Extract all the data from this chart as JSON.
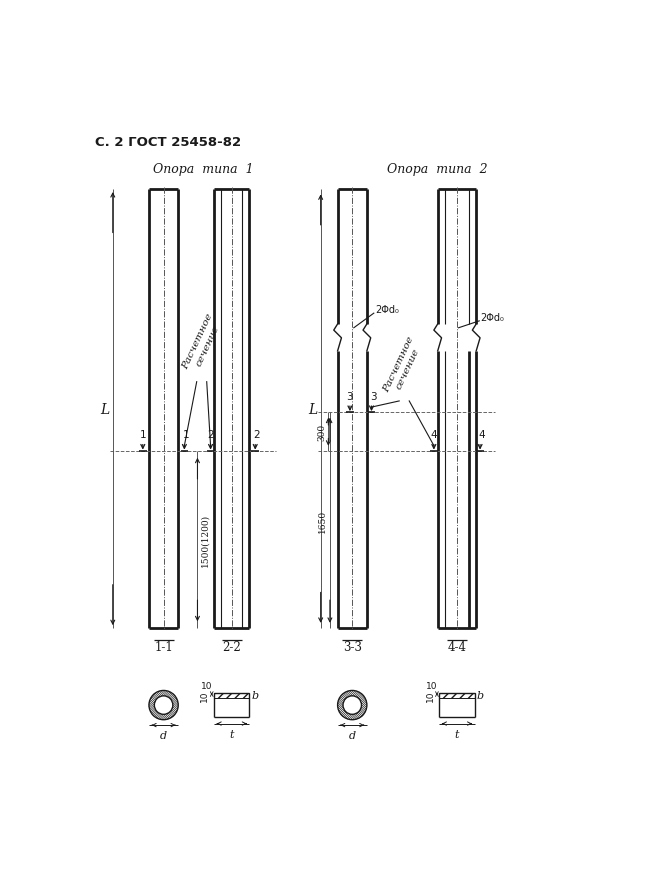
{
  "title_page": "С. 2 ГОСТ 25458-82",
  "title1": "Опора  типа  1",
  "title2": "Опора  типа  2",
  "bg_color": "#ffffff",
  "line_color": "#1a1a1a",
  "dim_text1": "1500(1200)",
  "dim_text2": "1650",
  "dim_text3": "300",
  "label_L": "L",
  "label_2Fd0": "2Φd₀",
  "label_Raschet1": "Расчетное\nсечение",
  "label_Raschet2": "Расчетное\nсечение",
  "label_b": "b",
  "label_t": "t",
  "label_d": "d",
  "label_10": "10"
}
